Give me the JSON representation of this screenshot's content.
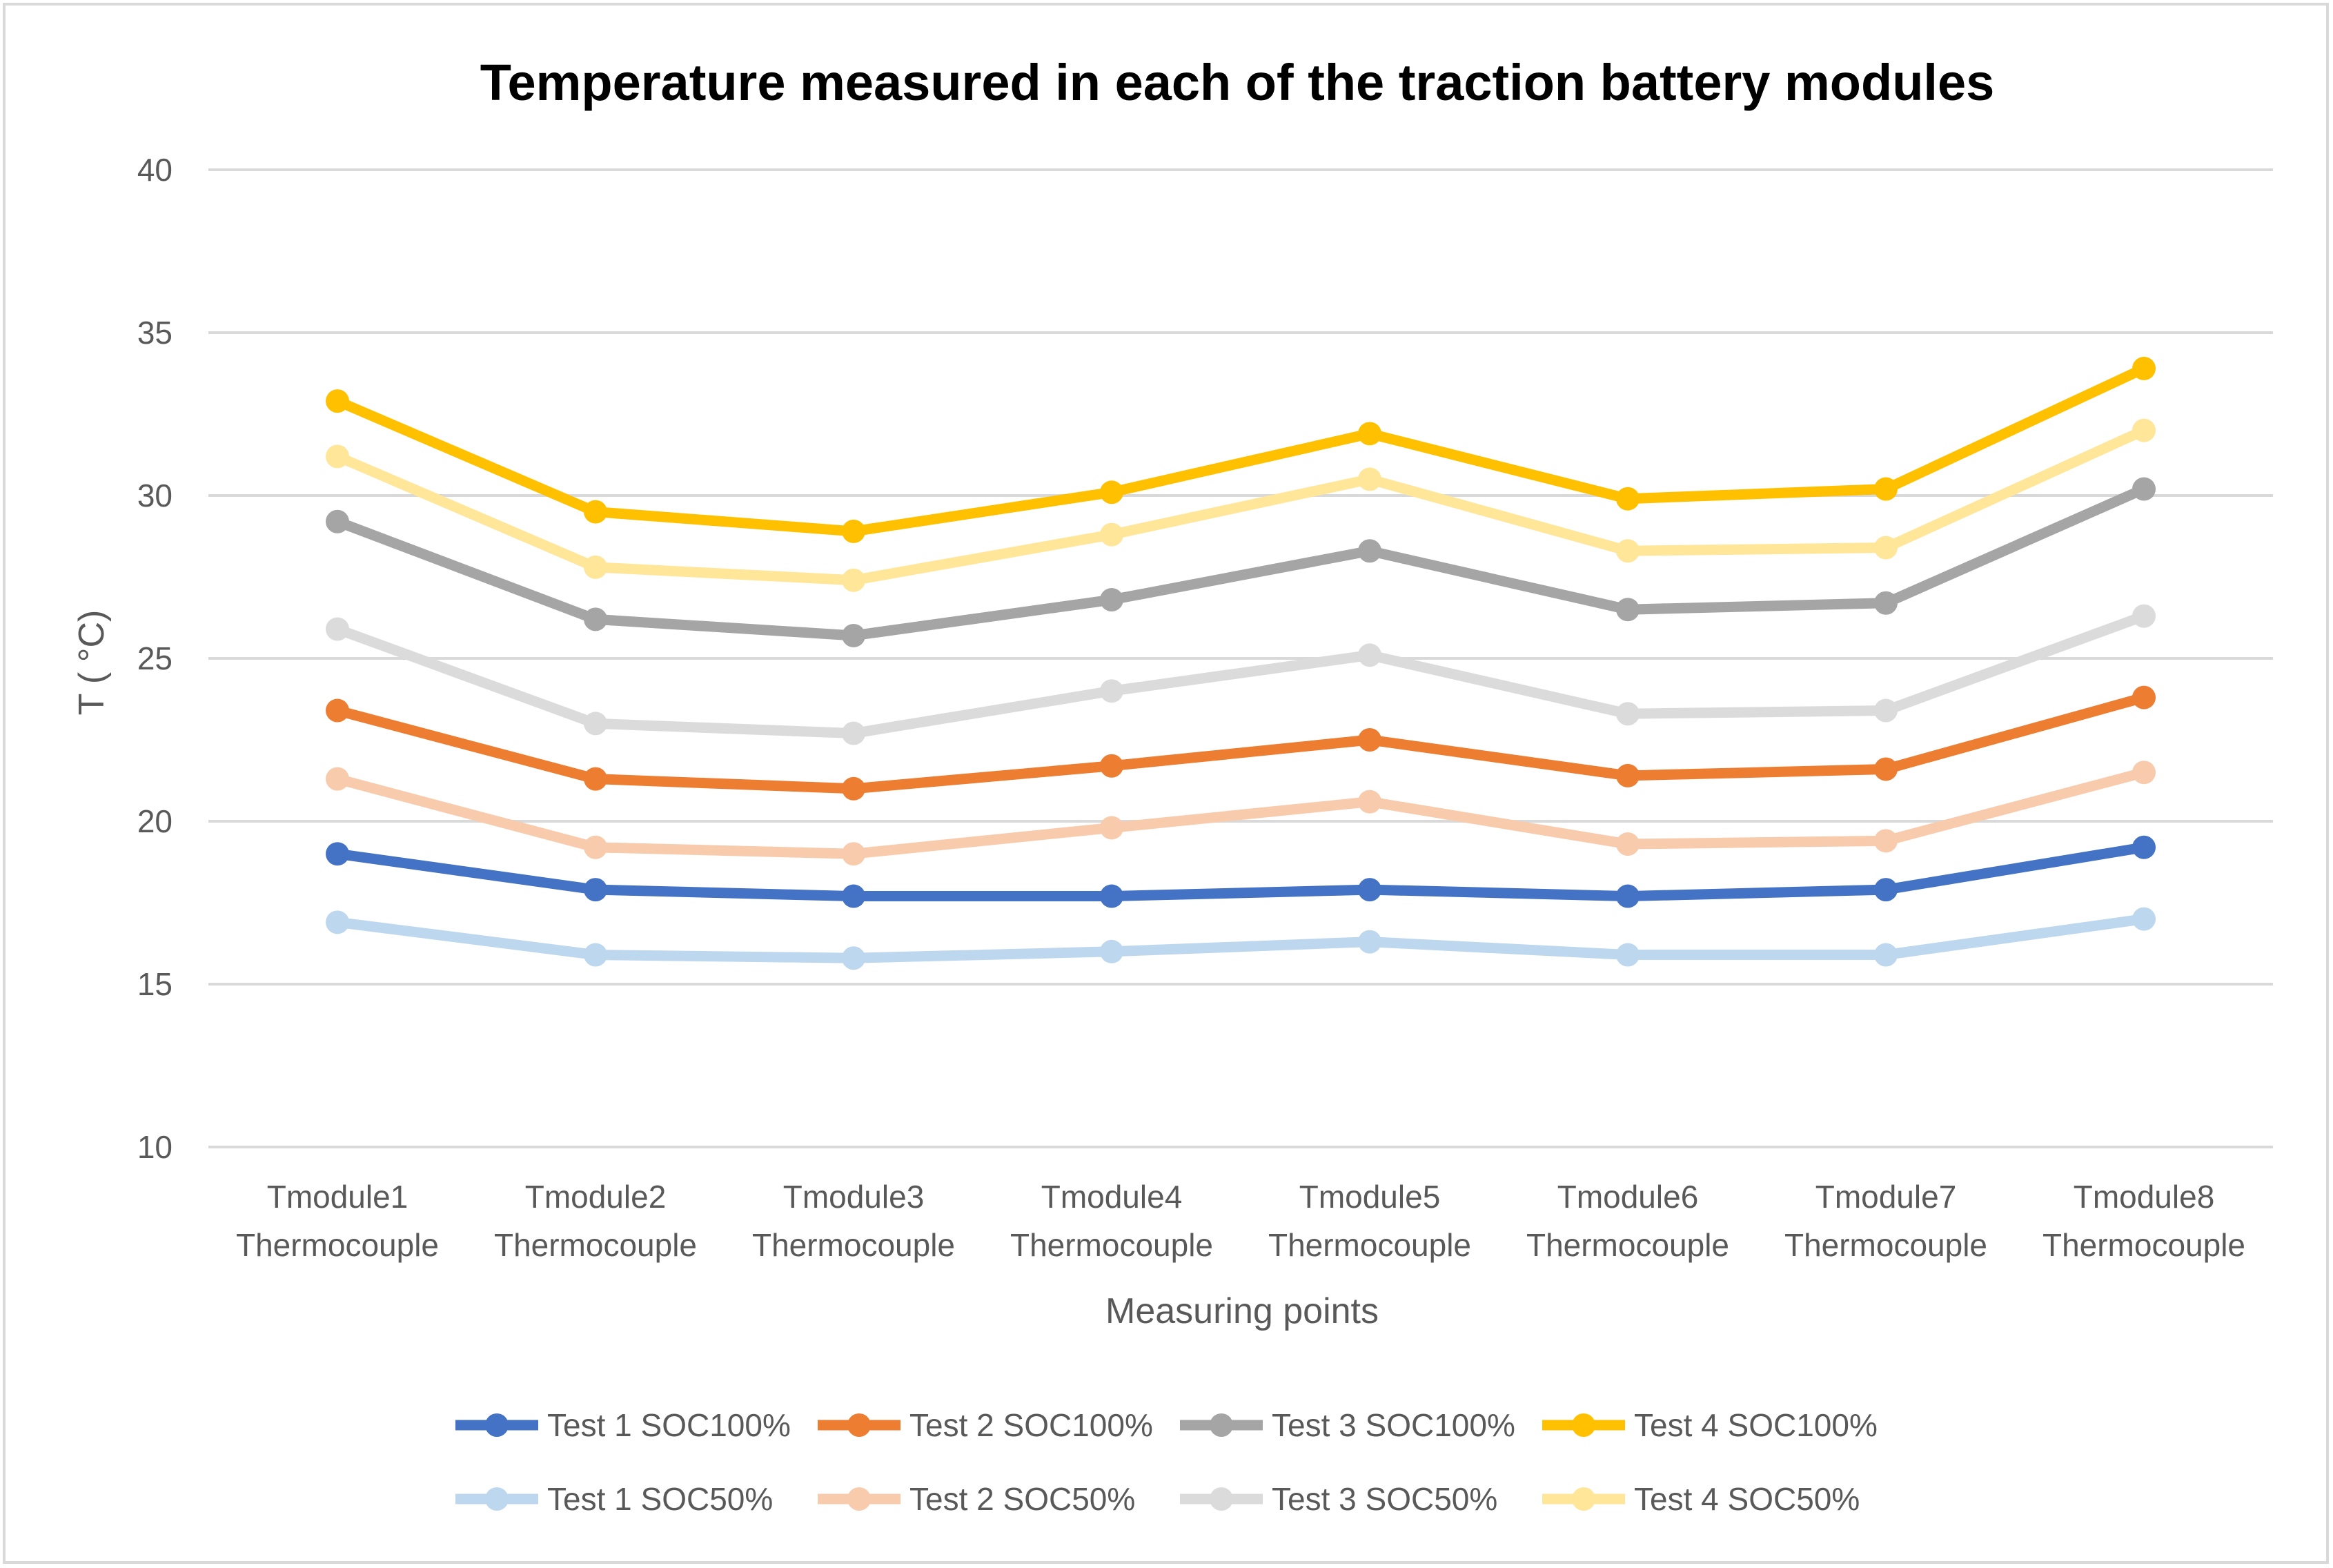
{
  "chart_data": {
    "type": "line",
    "title": "Temperature measured in each of the traction battery modules",
    "xlabel": "Measuring points",
    "ylabel": "T ( °C)",
    "ylim": [
      10,
      40
    ],
    "yticks": [
      10,
      15,
      20,
      25,
      30,
      35,
      40
    ],
    "grid": true,
    "legend_position": "bottom",
    "categories": [
      [
        "Tmodule1",
        "Thermocouple"
      ],
      [
        "Tmodule2",
        "Thermocouple"
      ],
      [
        "Tmodule3",
        "Thermocouple"
      ],
      [
        "Tmodule4",
        "Thermocouple"
      ],
      [
        "Tmodule5",
        "Thermocouple"
      ],
      [
        "Tmodule6",
        "Thermocouple"
      ],
      [
        "Tmodule7",
        "Thermocouple"
      ],
      [
        "Tmodule8",
        "Thermocouple"
      ]
    ],
    "series": [
      {
        "name": "Test 1 SOC100%",
        "color": "#4472c4",
        "values": [
          19.0,
          17.9,
          17.7,
          17.7,
          17.9,
          17.7,
          17.9,
          19.2
        ]
      },
      {
        "name": "Test 2 SOC100%",
        "color": "#ed7d31",
        "values": [
          23.4,
          21.3,
          21.0,
          21.7,
          22.5,
          21.4,
          21.6,
          23.8
        ]
      },
      {
        "name": "Test 3 SOC100%",
        "color": "#a5a5a5",
        "values": [
          29.2,
          26.2,
          25.7,
          26.8,
          28.3,
          26.5,
          26.7,
          30.2
        ]
      },
      {
        "name": "Test 4 SOC100%",
        "color": "#ffc000",
        "values": [
          32.9,
          29.5,
          28.9,
          30.1,
          31.9,
          29.9,
          30.2,
          33.9
        ]
      },
      {
        "name": "Test 1 SOC50%",
        "color": "#bdd7ee",
        "values": [
          16.9,
          15.9,
          15.8,
          16.0,
          16.3,
          15.9,
          15.9,
          17.0
        ]
      },
      {
        "name": "Test 2 SOC50%",
        "color": "#f8cbad",
        "values": [
          21.3,
          19.2,
          19.0,
          19.8,
          20.6,
          19.3,
          19.4,
          21.5
        ]
      },
      {
        "name": "Test 3 SOC50%",
        "color": "#dbdbdb",
        "values": [
          25.9,
          23.0,
          22.7,
          24.0,
          25.1,
          23.3,
          23.4,
          26.3
        ]
      },
      {
        "name": "Test 4 SOC50%",
        "color": "#ffe699",
        "values": [
          31.2,
          27.8,
          27.4,
          28.8,
          30.5,
          28.3,
          28.4,
          32.0
        ]
      }
    ]
  }
}
